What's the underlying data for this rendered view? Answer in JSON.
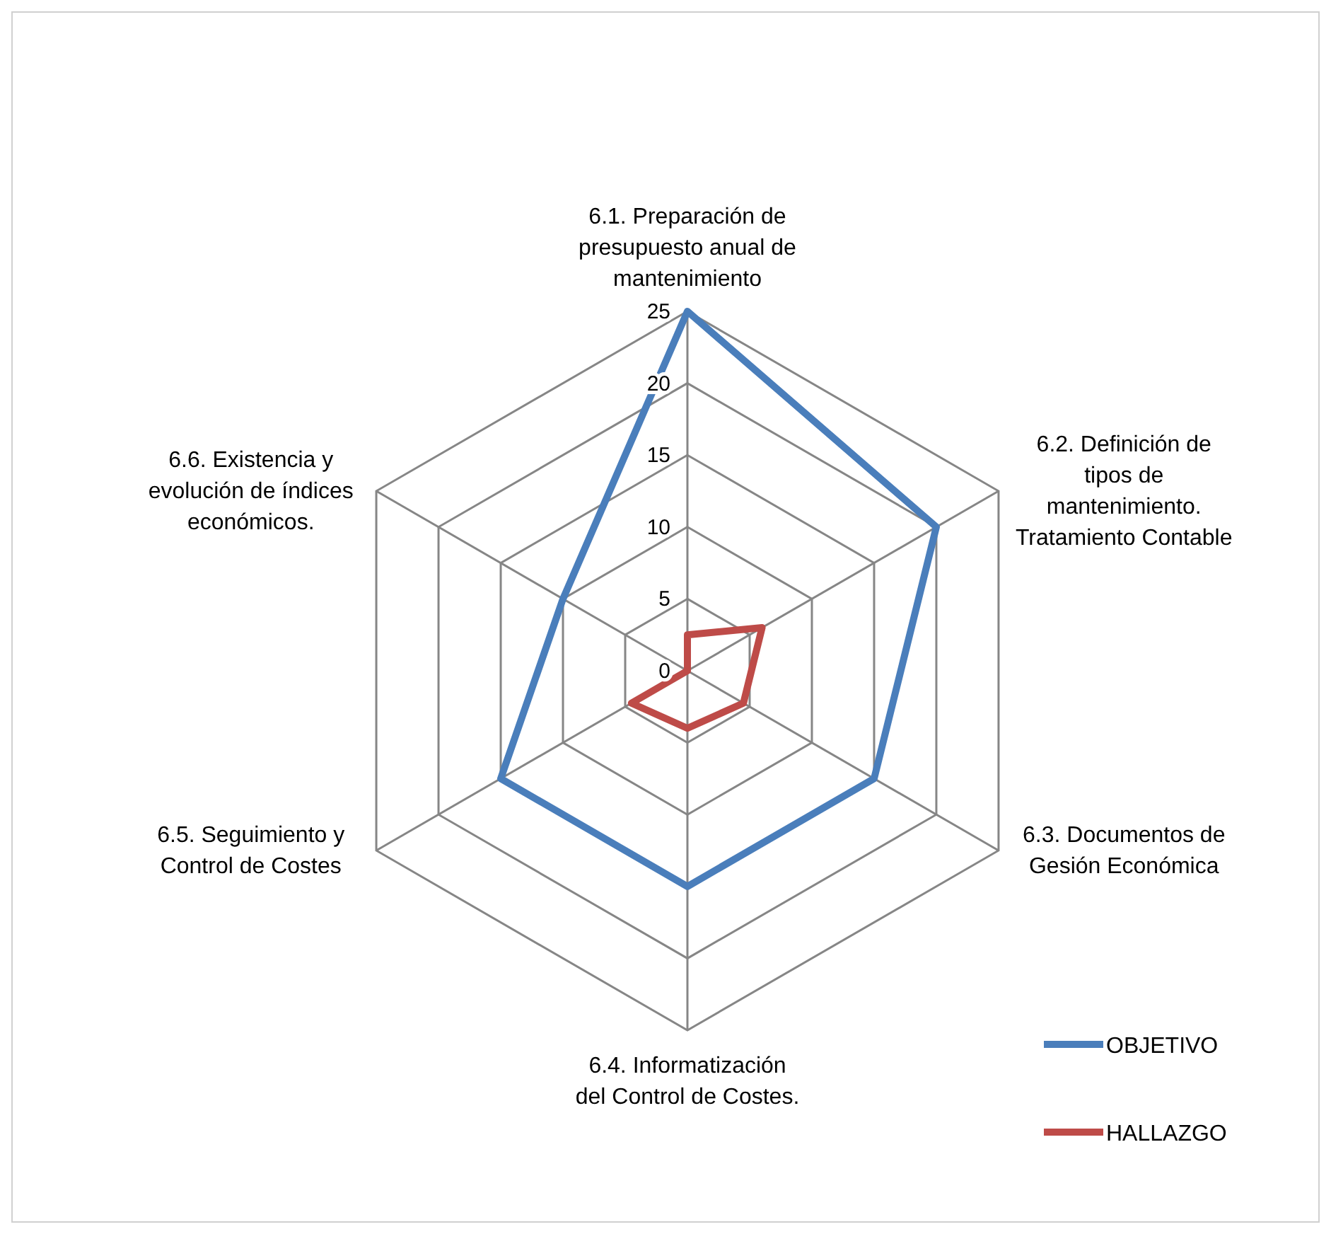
{
  "chart_data": {
    "type": "radar",
    "categories": [
      "6.1. Preparación de\npresupuesto anual de\nmantenimiento",
      "6.2. Definición de\ntipos de\nmantenimiento.\nTratamiento Contable",
      "6.3. Documentos de\nGesión Económica",
      "6.4. Informatización\ndel Control de Costes.",
      "6.5. Seguimiento y\nControl de Costes",
      "6.6. Existencia y\nevolución de índices\neconómicos."
    ],
    "series": [
      {
        "name": "OBJETIVO",
        "color": "#4a7ebb",
        "values": [
          25,
          20,
          15,
          15,
          15,
          10
        ]
      },
      {
        "name": "HALLAZGO",
        "color": "#be4b48",
        "values": [
          2.5,
          6,
          4.5,
          4,
          4.5,
          0
        ]
      }
    ],
    "ylim": [
      0,
      25
    ],
    "yticks": [
      0,
      5,
      10,
      15,
      20,
      25
    ],
    "grid": true,
    "legend": "right"
  }
}
